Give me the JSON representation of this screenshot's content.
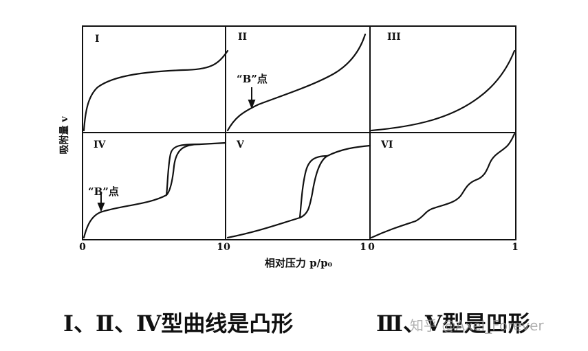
{
  "diagram": {
    "panels": [
      {
        "label": "I"
      },
      {
        "label": "II"
      },
      {
        "label": "III"
      },
      {
        "label": "IV"
      },
      {
        "label": "V"
      },
      {
        "label": "VI"
      }
    ],
    "annotations": {
      "b_point_top": "“B”点",
      "b_point_bottom": "“B”点"
    },
    "ylabel": "吸附量 v",
    "xlabel": "相对压力 p/p₀",
    "ticks": {
      "t0": "0",
      "t1": "1",
      "t2": "0",
      "t3": "1",
      "t4": "0",
      "t5": "1"
    }
  },
  "caption": {
    "left": "Ⅰ、Ⅱ、Ⅳ型曲线是凸形",
    "right": "Ⅲ、Ⅴ型是凹形"
  },
  "watermark": "知乎 @Axel_Forever",
  "colors": {
    "ink": "#111111",
    "paper": "#ffffff"
  }
}
